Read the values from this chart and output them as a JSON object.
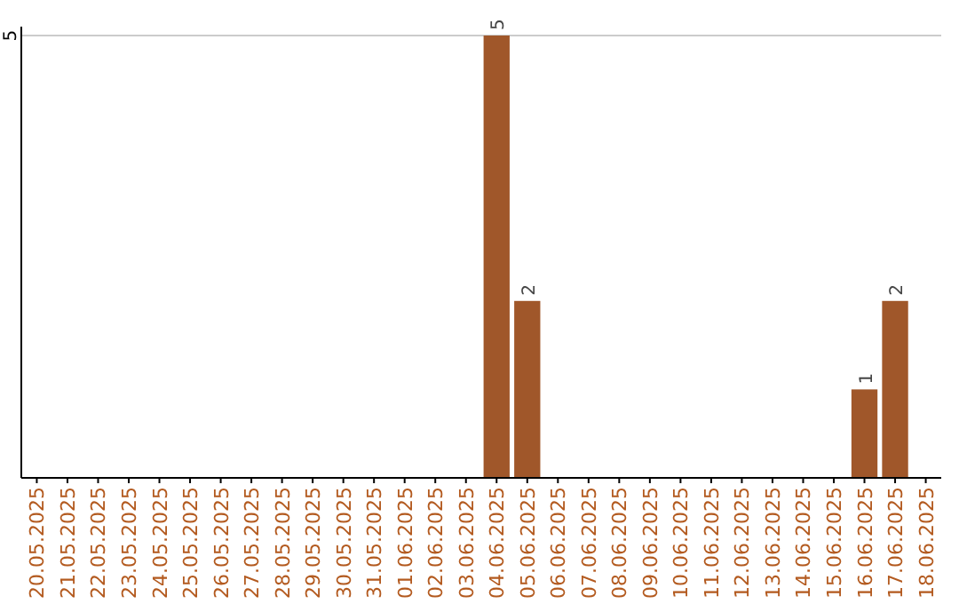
{
  "chart_data": {
    "type": "bar",
    "categories": [
      "20.05.2025",
      "21.05.2025",
      "22.05.2025",
      "23.05.2025",
      "24.05.2025",
      "25.05.2025",
      "26.05.2025",
      "27.05.2025",
      "28.05.2025",
      "29.05.2025",
      "30.05.2025",
      "31.05.2025",
      "01.06.2025",
      "02.06.2025",
      "03.06.2025",
      "04.06.2025",
      "05.06.2025",
      "06.06.2025",
      "07.06.2025",
      "08.06.2025",
      "09.06.2025",
      "10.06.2025",
      "11.06.2025",
      "12.06.2025",
      "13.06.2025",
      "14.06.2025",
      "15.06.2025",
      "16.06.2025",
      "17.06.2025",
      "18.06.2025"
    ],
    "values": [
      null,
      null,
      null,
      null,
      null,
      null,
      null,
      null,
      null,
      null,
      null,
      null,
      null,
      null,
      null,
      5,
      2,
      null,
      null,
      null,
      null,
      null,
      null,
      null,
      null,
      null,
      null,
      1,
      2,
      null
    ],
    "data_labels": true,
    "color": "#a0572a",
    "ylim": [
      0,
      5
    ],
    "yticks": [
      5
    ],
    "ref_lines": [
      {
        "axis": "y",
        "value": 5,
        "color": "#cccccc"
      }
    ]
  }
}
